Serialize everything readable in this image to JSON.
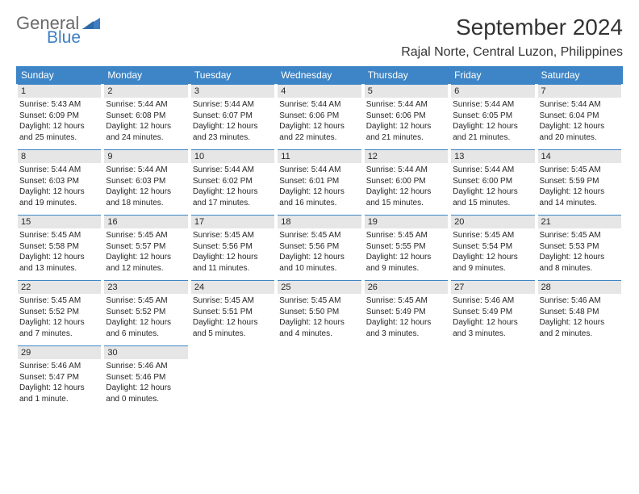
{
  "logo": {
    "text1": "General",
    "text2": "Blue",
    "color_gray": "#6a6a6a",
    "color_blue": "#3d7fc1"
  },
  "title": "September 2024",
  "location": "Rajal Norte, Central Luzon, Philippines",
  "colors": {
    "header_bg": "#3d85c6",
    "header_text": "#ffffff",
    "daynum_bg": "#e6e6e6",
    "border": "#3d85c6",
    "body_text": "#262626"
  },
  "weekdays": [
    "Sunday",
    "Monday",
    "Tuesday",
    "Wednesday",
    "Thursday",
    "Friday",
    "Saturday"
  ],
  "labels": {
    "sunrise": "Sunrise:",
    "sunset": "Sunset:",
    "daylight": "Daylight:"
  },
  "first_weekday_offset": 0,
  "days": [
    {
      "n": 1,
      "sunrise": "5:43 AM",
      "sunset": "6:09 PM",
      "daylight": "12 hours and 25 minutes."
    },
    {
      "n": 2,
      "sunrise": "5:44 AM",
      "sunset": "6:08 PM",
      "daylight": "12 hours and 24 minutes."
    },
    {
      "n": 3,
      "sunrise": "5:44 AM",
      "sunset": "6:07 PM",
      "daylight": "12 hours and 23 minutes."
    },
    {
      "n": 4,
      "sunrise": "5:44 AM",
      "sunset": "6:06 PM",
      "daylight": "12 hours and 22 minutes."
    },
    {
      "n": 5,
      "sunrise": "5:44 AM",
      "sunset": "6:06 PM",
      "daylight": "12 hours and 21 minutes."
    },
    {
      "n": 6,
      "sunrise": "5:44 AM",
      "sunset": "6:05 PM",
      "daylight": "12 hours and 21 minutes."
    },
    {
      "n": 7,
      "sunrise": "5:44 AM",
      "sunset": "6:04 PM",
      "daylight": "12 hours and 20 minutes."
    },
    {
      "n": 8,
      "sunrise": "5:44 AM",
      "sunset": "6:03 PM",
      "daylight": "12 hours and 19 minutes."
    },
    {
      "n": 9,
      "sunrise": "5:44 AM",
      "sunset": "6:03 PM",
      "daylight": "12 hours and 18 minutes."
    },
    {
      "n": 10,
      "sunrise": "5:44 AM",
      "sunset": "6:02 PM",
      "daylight": "12 hours and 17 minutes."
    },
    {
      "n": 11,
      "sunrise": "5:44 AM",
      "sunset": "6:01 PM",
      "daylight": "12 hours and 16 minutes."
    },
    {
      "n": 12,
      "sunrise": "5:44 AM",
      "sunset": "6:00 PM",
      "daylight": "12 hours and 15 minutes."
    },
    {
      "n": 13,
      "sunrise": "5:44 AM",
      "sunset": "6:00 PM",
      "daylight": "12 hours and 15 minutes."
    },
    {
      "n": 14,
      "sunrise": "5:45 AM",
      "sunset": "5:59 PM",
      "daylight": "12 hours and 14 minutes."
    },
    {
      "n": 15,
      "sunrise": "5:45 AM",
      "sunset": "5:58 PM",
      "daylight": "12 hours and 13 minutes."
    },
    {
      "n": 16,
      "sunrise": "5:45 AM",
      "sunset": "5:57 PM",
      "daylight": "12 hours and 12 minutes."
    },
    {
      "n": 17,
      "sunrise": "5:45 AM",
      "sunset": "5:56 PM",
      "daylight": "12 hours and 11 minutes."
    },
    {
      "n": 18,
      "sunrise": "5:45 AM",
      "sunset": "5:56 PM",
      "daylight": "12 hours and 10 minutes."
    },
    {
      "n": 19,
      "sunrise": "5:45 AM",
      "sunset": "5:55 PM",
      "daylight": "12 hours and 9 minutes."
    },
    {
      "n": 20,
      "sunrise": "5:45 AM",
      "sunset": "5:54 PM",
      "daylight": "12 hours and 9 minutes."
    },
    {
      "n": 21,
      "sunrise": "5:45 AM",
      "sunset": "5:53 PM",
      "daylight": "12 hours and 8 minutes."
    },
    {
      "n": 22,
      "sunrise": "5:45 AM",
      "sunset": "5:52 PM",
      "daylight": "12 hours and 7 minutes."
    },
    {
      "n": 23,
      "sunrise": "5:45 AM",
      "sunset": "5:52 PM",
      "daylight": "12 hours and 6 minutes."
    },
    {
      "n": 24,
      "sunrise": "5:45 AM",
      "sunset": "5:51 PM",
      "daylight": "12 hours and 5 minutes."
    },
    {
      "n": 25,
      "sunrise": "5:45 AM",
      "sunset": "5:50 PM",
      "daylight": "12 hours and 4 minutes."
    },
    {
      "n": 26,
      "sunrise": "5:45 AM",
      "sunset": "5:49 PM",
      "daylight": "12 hours and 3 minutes."
    },
    {
      "n": 27,
      "sunrise": "5:46 AM",
      "sunset": "5:49 PM",
      "daylight": "12 hours and 3 minutes."
    },
    {
      "n": 28,
      "sunrise": "5:46 AM",
      "sunset": "5:48 PM",
      "daylight": "12 hours and 2 minutes."
    },
    {
      "n": 29,
      "sunrise": "5:46 AM",
      "sunset": "5:47 PM",
      "daylight": "12 hours and 1 minute."
    },
    {
      "n": 30,
      "sunrise": "5:46 AM",
      "sunset": "5:46 PM",
      "daylight": "12 hours and 0 minutes."
    }
  ]
}
